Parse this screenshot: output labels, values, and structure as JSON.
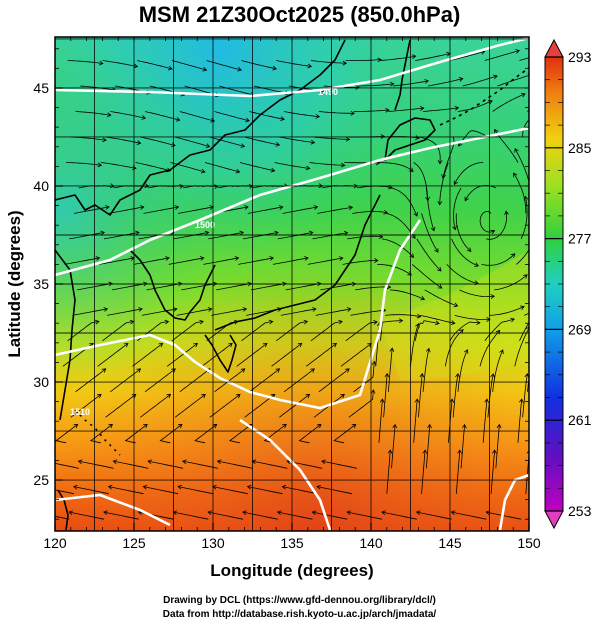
{
  "title": "MSM 21Z30Oct2025 (850.0hPa)",
  "xlabel": "Longitude (degrees)",
  "ylabel": "Latitude  (degrees)",
  "x_ticks": [
    "120",
    "125",
    "130",
    "135",
    "140",
    "145",
    "150"
  ],
  "y_ticks": [
    "25",
    "30",
    "35",
    "40",
    "45"
  ],
  "colorbar": {
    "labels": [
      "293",
      "285",
      "277",
      "269",
      "261",
      "253"
    ],
    "min": 253,
    "max": 293
  },
  "contour_labels": [
    "1490",
    "1500",
    "1510"
  ],
  "credits": {
    "line1": "Drawing by DCL (https://www.gfd-dennou.org/library/dcl/)",
    "line2": "Data from http://database.rish.kyoto-u.ac.jp/arch/jmadata/"
  },
  "chart_data": {
    "type": "heatmap",
    "title": "MSM 21Z30Oct2025 (850.0hPa)",
    "xlabel": "Longitude (degrees)",
    "ylabel": "Latitude  (degrees)",
    "xlim": [
      120,
      150
    ],
    "ylim": [
      22.4,
      47.6
    ],
    "x_ticks": [
      120,
      125,
      130,
      135,
      140,
      145,
      150
    ],
    "y_ticks": [
      25,
      30,
      35,
      40,
      45
    ],
    "color_range": [
      253,
      293
    ],
    "colorbar_ticks": [
      293,
      285,
      277,
      269,
      261,
      253
    ],
    "grid": true,
    "overlays": [
      "streamlines",
      "geopotential height contours",
      "coastlines"
    ],
    "cyclone_center": {
      "lon": 147.5,
      "lat": 37.8
    }
  }
}
